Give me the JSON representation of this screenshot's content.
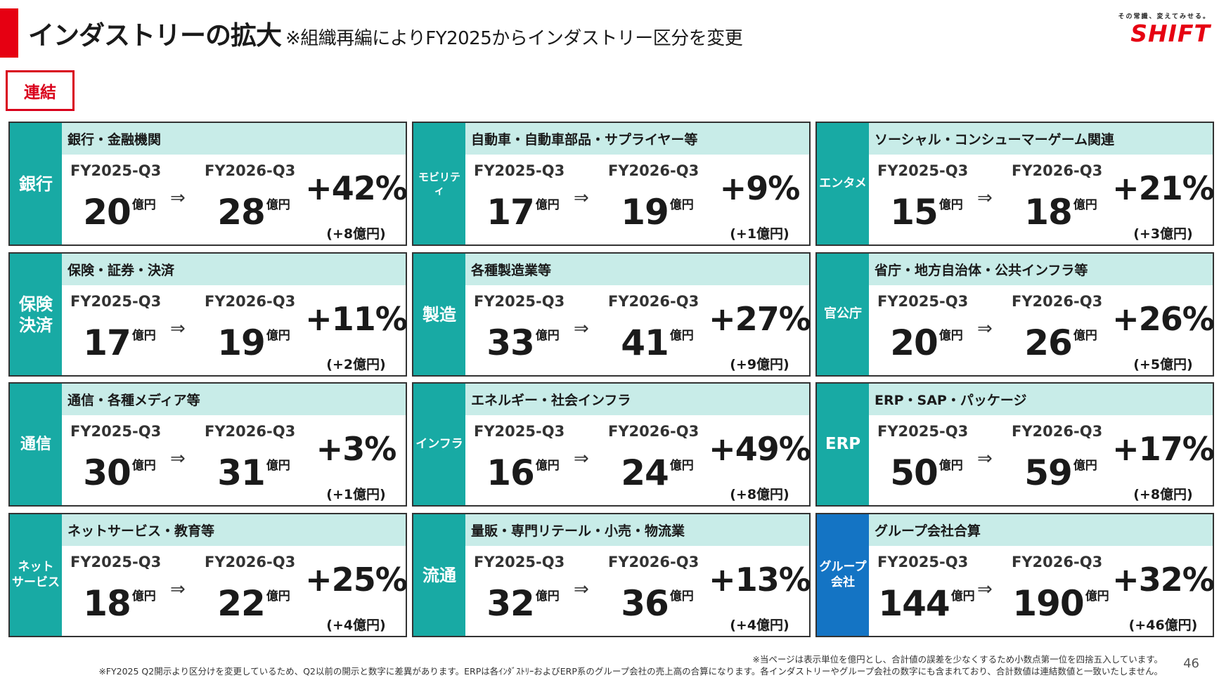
{
  "title": {
    "main": "インダストリーの拡大",
    "sub": "※組織再編によりFY2025からインダストリー区分を変更"
  },
  "logo": {
    "tagline": "その常識、変えてみせる。",
    "word": "SHIFT"
  },
  "scope_badge": "連結",
  "period_labels": {
    "from": "FY2025-Q3",
    "to": "FY2026-Q3",
    "arrow": "⇒",
    "unit": "億円"
  },
  "cards": [
    {
      "side": "銀行",
      "side_size": 24,
      "head": "銀行・金融機関",
      "from": "20",
      "to": "28",
      "pct": "+42%",
      "diff": "(+8億円)"
    },
    {
      "side": "モビリティ",
      "side_size": 15,
      "head": "自動車・自動車部品・サプライヤー等",
      "from": "17",
      "to": "19",
      "pct": "+9%",
      "diff": "(+1億円)"
    },
    {
      "side": "エンタメ",
      "side_size": 17,
      "head": "ソーシャル・コンシューマーゲーム関連",
      "from": "15",
      "to": "18",
      "pct": "+21%",
      "diff": "(+3億円)"
    },
    {
      "side": "保険\n決済",
      "side_size": 24,
      "head": "保険・証券・決済",
      "from": "17",
      "to": "19",
      "pct": "+11%",
      "diff": "(+2億円)"
    },
    {
      "side": "製造",
      "side_size": 24,
      "head": "各種製造業等",
      "from": "33",
      "to": "41",
      "pct": "+27%",
      "diff": "(+9億円)"
    },
    {
      "side": "官公庁",
      "side_size": 18,
      "head": "省庁・地方自治体・公共インフラ等",
      "from": "20",
      "to": "26",
      "pct": "+26%",
      "diff": "(+5億円)"
    },
    {
      "side": "通信",
      "side_size": 22,
      "head": "通信・各種メディア等",
      "from": "30",
      "to": "31",
      "pct": "+3%",
      "diff": "(+1億円)"
    },
    {
      "side": "インフラ",
      "side_size": 17,
      "head": "エネルギー・社会インフラ",
      "from": "16",
      "to": "24",
      "pct": "+49%",
      "diff": "(+8億円)"
    },
    {
      "side": "ERP",
      "side_size": 23,
      "head": "ERP・SAP・パッケージ",
      "from": "50",
      "to": "59",
      "pct": "+17%",
      "diff": "(+8億円)"
    },
    {
      "side": "ネット\nサービス",
      "side_size": 17,
      "head": "ネットサービス・教育等",
      "from": "18",
      "to": "22",
      "pct": "+25%",
      "diff": "(+4億円)"
    },
    {
      "side": "流通",
      "side_size": 24,
      "head": "量販・専門リテール・小売・物流業",
      "from": "32",
      "to": "36",
      "pct": "+13%",
      "diff": "(+4億円)"
    },
    {
      "side": "グループ\n会社",
      "side_size": 17,
      "head": "グループ会社合算",
      "from": "144",
      "to": "190",
      "pct": "+32%",
      "diff": "(+46億円)",
      "group": true
    }
  ],
  "footnotes": [
    "※当ページは表示単位を億円とし、合計値の誤差を少なくするため小数点第一位を四捨五入しています。",
    "※FY2025 Q2開示より区分けを変更しているため、Q2以前の開示と数字に差異があります。ERPは各ｲﾝﾀﾞｽﾄﾘｰおよびERP系のグループ会社の売上高の合算になります。各インダストリーやグループ会社の数字にも含まれており、合計数値は連結数値と一致いたしません。"
  ],
  "page_number": "46"
}
